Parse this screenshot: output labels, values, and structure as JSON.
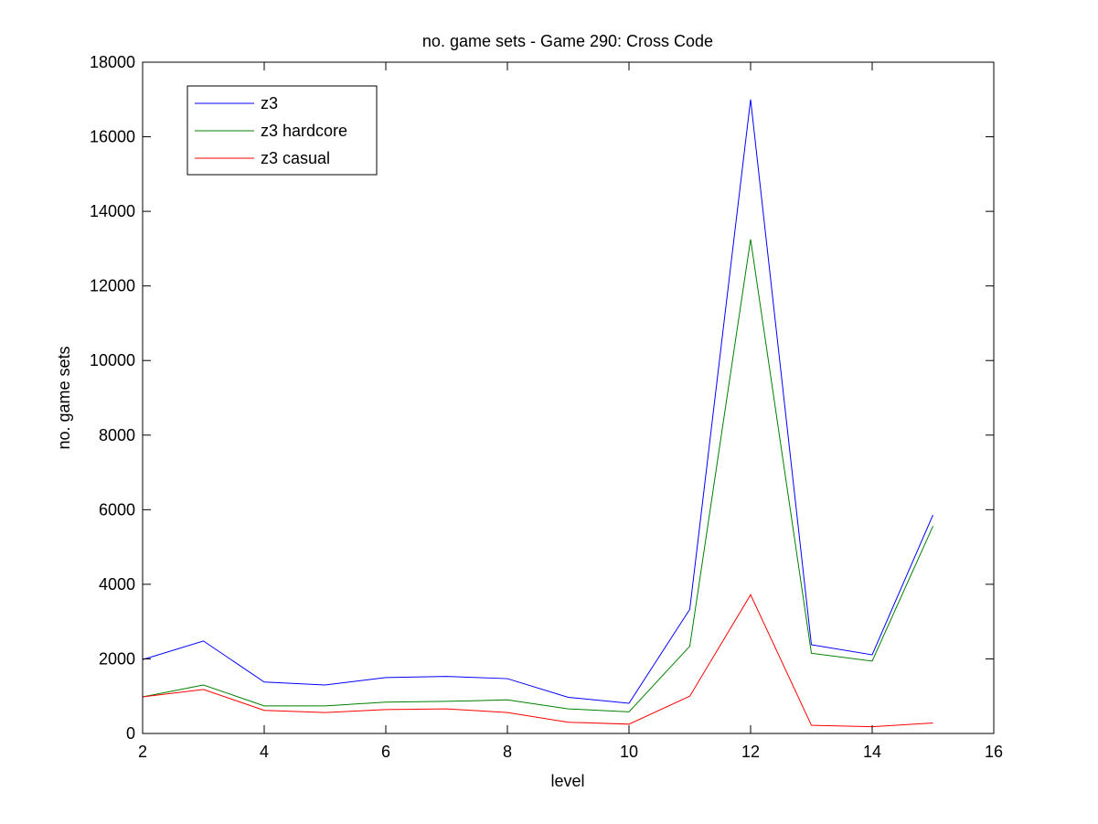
{
  "chart_data": {
    "type": "line",
    "title": "no. game sets - Game 290: Cross Code",
    "xlabel": "level",
    "ylabel": "no. game sets",
    "xlim": [
      2,
      16
    ],
    "ylim": [
      0,
      18000
    ],
    "x_ticks": [
      2,
      4,
      6,
      8,
      10,
      12,
      14,
      16
    ],
    "y_ticks": [
      0,
      2000,
      4000,
      6000,
      8000,
      10000,
      12000,
      14000,
      16000,
      18000
    ],
    "grid": false,
    "legend_position": "top-left",
    "x": [
      2,
      3,
      4,
      5,
      6,
      7,
      8,
      9,
      10,
      11,
      12,
      13,
      14,
      15
    ],
    "series": [
      {
        "name": "z3",
        "color": "#0000ff",
        "values": [
          1980,
          2480,
          1380,
          1300,
          1500,
          1530,
          1470,
          970,
          810,
          3330,
          17000,
          2380,
          2110,
          5860
        ]
      },
      {
        "name": "z3 hardcore",
        "color": "#008000",
        "values": [
          980,
          1300,
          740,
          740,
          840,
          860,
          900,
          660,
          580,
          2340,
          13250,
          2150,
          1940,
          5560
        ]
      },
      {
        "name": "z3 casual",
        "color": "#ff0000",
        "values": [
          980,
          1180,
          620,
          560,
          640,
          660,
          560,
          300,
          250,
          1000,
          3720,
          220,
          180,
          280
        ]
      }
    ]
  }
}
